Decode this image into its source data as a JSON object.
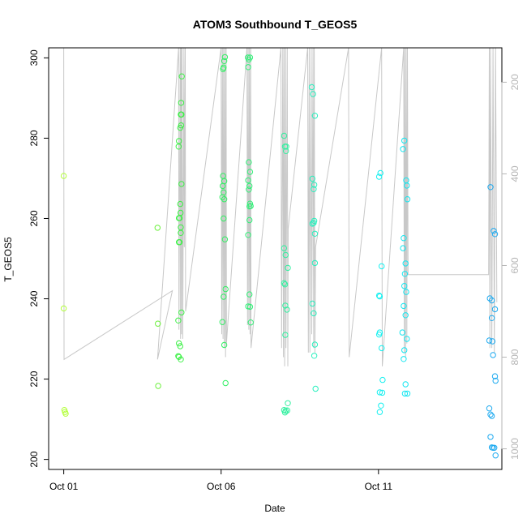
{
  "chart_data": {
    "type": "scatter",
    "title": "ATOM3 Southbound T_GEOS5",
    "xlabel": "Date",
    "ylabel": "T_GEOS5",
    "x_ticks": [
      {
        "day": 1,
        "label": "Oct 01"
      },
      {
        "day": 6,
        "label": "Oct 06"
      },
      {
        "day": 11,
        "label": "Oct 11"
      }
    ],
    "xlim": [
      0.52,
      14.92
    ],
    "ylim": [
      197.5,
      302.5
    ],
    "y_ticks": [
      200,
      220,
      240,
      260,
      280,
      300
    ],
    "y2_ticks": [
      200,
      400,
      600,
      800,
      1000
    ],
    "y2lim": [
      125,
      1045
    ],
    "y2_inverted": true,
    "grid": false,
    "colors": {
      "d1": "#b4ff3c",
      "d4": "#6cf03c",
      "d5": "#3cf046",
      "d6": "#32f064",
      "d7": "#32f078",
      "d8": "#32f0a0",
      "d9": "#28f0be",
      "d11": "#14f0f0",
      "d12": "#14e6f0",
      "d14": "#1eaaf0",
      "pressure": "#c8c8c8"
    },
    "series": [
      {
        "color_key": "d1",
        "points": [
          [
            1.0,
            270.6
          ],
          [
            1.0,
            237.6
          ],
          [
            1.02,
            212.3
          ],
          [
            1.04,
            211.8
          ],
          [
            1.06,
            211.4
          ]
        ]
      },
      {
        "color_key": "d4",
        "points": [
          [
            3.98,
            257.7
          ],
          [
            3.99,
            233.8
          ],
          [
            4.0,
            218.3
          ]
        ]
      },
      {
        "color_key": "d5",
        "points": [
          [
            4.75,
            295.4
          ],
          [
            4.73,
            288.8
          ],
          [
            4.72,
            285.9
          ],
          [
            4.74,
            285.9
          ],
          [
            4.73,
            283.2
          ],
          [
            4.7,
            282.6
          ],
          [
            4.66,
            279.3
          ],
          [
            4.65,
            277.9
          ],
          [
            4.74,
            268.6
          ],
          [
            4.7,
            263.6
          ],
          [
            4.71,
            261.4
          ],
          [
            4.66,
            260.1
          ],
          [
            4.68,
            260.1
          ],
          [
            4.72,
            257.8
          ],
          [
            4.72,
            256.4
          ],
          [
            4.66,
            254.1
          ],
          [
            4.68,
            254.1
          ],
          [
            4.74,
            236.6
          ],
          [
            4.64,
            234.6
          ],
          [
            4.66,
            228.9
          ],
          [
            4.7,
            228.2
          ],
          [
            4.64,
            225.7
          ],
          [
            4.66,
            225.5
          ],
          [
            4.72,
            224.9
          ]
        ]
      },
      {
        "color_key": "d6",
        "points": [
          [
            6.12,
            300.2
          ],
          [
            6.1,
            299.2
          ],
          [
            6.08,
            297.6
          ],
          [
            6.06,
            297.2
          ],
          [
            6.06,
            270.6
          ],
          [
            6.1,
            269.3
          ],
          [
            6.05,
            268.1
          ],
          [
            6.08,
            266.5
          ],
          [
            6.1,
            264.8
          ],
          [
            6.04,
            265.3
          ],
          [
            6.08,
            260.0
          ],
          [
            6.12,
            254.8
          ],
          [
            6.14,
            242.4
          ],
          [
            6.08,
            240.5
          ],
          [
            6.04,
            234.2
          ],
          [
            6.1,
            228.5
          ],
          [
            6.14,
            219.0
          ]
        ]
      },
      {
        "color_key": "d7",
        "points": [
          [
            6.85,
            300.1
          ],
          [
            6.92,
            300.1
          ],
          [
            6.88,
            299.6
          ],
          [
            6.86,
            297.7
          ],
          [
            6.88,
            274.0
          ],
          [
            6.92,
            271.6
          ],
          [
            6.86,
            269.5
          ],
          [
            6.9,
            268.1
          ],
          [
            6.88,
            267.2
          ],
          [
            6.92,
            263.7
          ],
          [
            6.9,
            263.0
          ],
          [
            6.94,
            263.1
          ],
          [
            6.9,
            259.6
          ],
          [
            6.86,
            255.9
          ],
          [
            6.9,
            241.1
          ],
          [
            6.86,
            238.1
          ],
          [
            6.92,
            238.0
          ],
          [
            6.94,
            234.1
          ]
        ]
      },
      {
        "color_key": "d8",
        "points": [
          [
            8.0,
            280.6
          ],
          [
            8.03,
            277.9
          ],
          [
            8.07,
            277.9
          ],
          [
            8.06,
            276.8
          ],
          [
            8.0,
            252.6
          ],
          [
            8.05,
            250.9
          ],
          [
            8.12,
            247.7
          ],
          [
            8.0,
            243.9
          ],
          [
            8.03,
            243.6
          ],
          [
            8.04,
            238.3
          ],
          [
            8.09,
            237.3
          ],
          [
            8.04,
            231.0
          ],
          [
            8.12,
            214.0
          ],
          [
            8.0,
            212.3
          ],
          [
            8.05,
            212.1
          ],
          [
            8.1,
            212.2
          ],
          [
            8.03,
            211.7
          ]
        ]
      },
      {
        "color_key": "d9",
        "points": [
          [
            8.88,
            292.7
          ],
          [
            8.92,
            291.0
          ],
          [
            8.98,
            285.6
          ],
          [
            8.9,
            269.9
          ],
          [
            8.94,
            267.3
          ],
          [
            8.96,
            268.4
          ],
          [
            8.96,
            259.4
          ],
          [
            8.9,
            258.7
          ],
          [
            8.94,
            258.9
          ],
          [
            8.98,
            256.2
          ],
          [
            8.98,
            248.9
          ],
          [
            8.9,
            238.8
          ],
          [
            8.94,
            236.4
          ],
          [
            8.98,
            228.6
          ],
          [
            8.96,
            225.8
          ],
          [
            9.0,
            217.6
          ]
        ]
      },
      {
        "color_key": "d11",
        "points": [
          [
            11.06,
            271.3
          ],
          [
            11.02,
            270.4
          ],
          [
            11.1,
            248.1
          ],
          [
            11.02,
            240.8
          ],
          [
            11.04,
            240.6
          ],
          [
            11.02,
            231.1
          ],
          [
            11.04,
            231.6
          ],
          [
            11.1,
            227.7
          ],
          [
            11.13,
            219.8
          ],
          [
            11.04,
            216.7
          ],
          [
            11.12,
            216.6
          ],
          [
            11.08,
            213.4
          ],
          [
            11.04,
            211.8
          ]
        ]
      },
      {
        "color_key": "d12",
        "points": [
          [
            11.82,
            279.4
          ],
          [
            11.78,
            277.3
          ],
          [
            11.88,
            269.5
          ],
          [
            11.9,
            268.2
          ],
          [
            11.92,
            264.8
          ],
          [
            11.8,
            255.1
          ],
          [
            11.78,
            252.6
          ],
          [
            11.86,
            248.8
          ],
          [
            11.84,
            246.2
          ],
          [
            11.82,
            243.2
          ],
          [
            11.88,
            241.7
          ],
          [
            11.8,
            238.2
          ],
          [
            11.86,
            235.9
          ],
          [
            11.76,
            231.6
          ],
          [
            11.9,
            230.0
          ],
          [
            11.82,
            227.2
          ],
          [
            11.8,
            225.0
          ],
          [
            11.86,
            218.7
          ],
          [
            11.84,
            216.4
          ],
          [
            11.92,
            216.4
          ]
        ]
      },
      {
        "color_key": "d14",
        "points": [
          [
            14.56,
            267.8
          ],
          [
            14.66,
            256.9
          ],
          [
            14.7,
            256.1
          ],
          [
            14.54,
            240.1
          ],
          [
            14.6,
            239.6
          ],
          [
            14.7,
            237.4
          ],
          [
            14.6,
            235.2
          ],
          [
            14.52,
            229.6
          ],
          [
            14.62,
            229.4
          ],
          [
            14.64,
            226.0
          ],
          [
            14.7,
            220.7
          ],
          [
            14.72,
            219.6
          ],
          [
            14.52,
            212.7
          ],
          [
            14.56,
            211.2
          ],
          [
            14.6,
            210.8
          ],
          [
            14.56,
            205.6
          ],
          [
            14.6,
            203.0
          ],
          [
            14.64,
            202.9
          ],
          [
            14.68,
            202.9
          ],
          [
            14.72,
            201.0
          ]
        ]
      }
    ],
    "pressure_series": {
      "name": "",
      "points": [
        [
          1.0,
          125
        ],
        [
          1.01,
          805
        ],
        [
          4.45,
          655
        ],
        [
          3.98,
          805
        ],
        [
          4.65,
          125
        ],
        [
          4.66,
          740
        ],
        [
          4.7,
          125
        ],
        [
          4.71,
          760
        ],
        [
          4.73,
          125
        ],
        [
          4.74,
          750
        ],
        [
          4.76,
          125
        ],
        [
          4.78,
          760
        ],
        [
          4.82,
          125
        ],
        [
          4.83,
          560
        ],
        [
          4.86,
          125
        ],
        [
          4.87,
          700
        ],
        [
          6.0,
          125
        ],
        [
          6.02,
          750
        ],
        [
          6.04,
          125
        ],
        [
          6.06,
          760
        ],
        [
          6.08,
          125
        ],
        [
          6.1,
          780
        ],
        [
          6.12,
          125
        ],
        [
          6.14,
          800
        ],
        [
          6.16,
          125
        ],
        [
          6.17,
          770
        ],
        [
          6.82,
          125
        ],
        [
          6.84,
          730
        ],
        [
          6.86,
          125
        ],
        [
          6.88,
          740
        ],
        [
          6.9,
          125
        ],
        [
          6.92,
          750
        ],
        [
          6.94,
          125
        ],
        [
          6.95,
          780
        ],
        [
          7.9,
          125
        ],
        [
          7.92,
          780
        ],
        [
          7.96,
          125
        ],
        [
          7.98,
          800
        ],
        [
          8.0,
          125
        ],
        [
          8.02,
          820
        ],
        [
          8.05,
          125
        ],
        [
          8.06,
          780
        ],
        [
          8.1,
          125
        ],
        [
          8.12,
          820
        ],
        [
          8.13,
          520
        ],
        [
          8.75,
          125
        ],
        [
          8.77,
          790
        ],
        [
          8.8,
          125
        ],
        [
          8.82,
          790
        ],
        [
          8.86,
          125
        ],
        [
          8.88,
          750
        ],
        [
          8.92,
          125
        ],
        [
          8.94,
          780
        ],
        [
          8.96,
          125
        ],
        [
          8.98,
          790
        ],
        [
          9.0,
          560
        ],
        [
          10.05,
          125
        ],
        [
          10.07,
          800
        ],
        [
          11.1,
          125
        ],
        [
          11.12,
          820
        ],
        [
          11.14,
          800
        ],
        [
          11.8,
          125
        ],
        [
          11.82,
          790
        ],
        [
          11.84,
          125
        ],
        [
          11.86,
          800
        ],
        [
          11.88,
          125
        ],
        [
          11.9,
          770
        ],
        [
          11.92,
          125
        ],
        [
          11.94,
          620
        ],
        [
          14.5,
          620
        ],
        [
          14.52,
          125
        ],
        [
          14.54,
          780
        ],
        [
          14.56,
          125
        ],
        [
          14.6,
          780
        ],
        [
          14.64,
          125
        ],
        [
          14.68,
          790
        ],
        [
          14.72,
          125
        ],
        [
          14.76,
          680
        ]
      ]
    }
  }
}
